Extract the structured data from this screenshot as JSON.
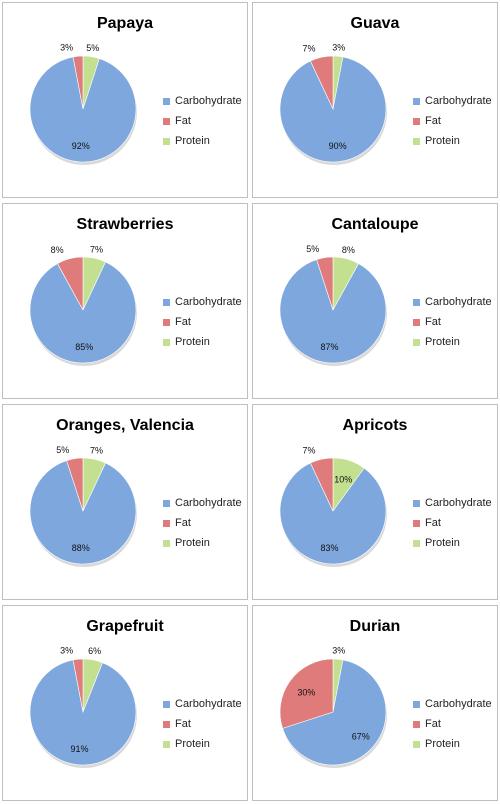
{
  "chart_data": [
    {
      "type": "pie",
      "title": "Papaya",
      "labels": [
        "Carbohydrate",
        "Fat",
        "Protein"
      ],
      "values": [
        92,
        3,
        5
      ],
      "value_labels": [
        "92%",
        "3%",
        "5%"
      ],
      "colors": [
        "#7ea7dd",
        "#e07b7b",
        "#c2e08f"
      ],
      "legend_position": "right"
    },
    {
      "type": "pie",
      "title": "Guava",
      "labels": [
        "Carbohydrate",
        "Fat",
        "Protein"
      ],
      "values": [
        90,
        7,
        3
      ],
      "value_labels": [
        "90%",
        "7%",
        "3%"
      ],
      "colors": [
        "#7ea7dd",
        "#e07b7b",
        "#c2e08f"
      ],
      "legend_position": "right"
    },
    {
      "type": "pie",
      "title": "Strawberries",
      "labels": [
        "Carbohydrate",
        "Fat",
        "Protein"
      ],
      "values": [
        85,
        8,
        7
      ],
      "value_labels": [
        "85%",
        "8%",
        "7%"
      ],
      "colors": [
        "#7ea7dd",
        "#e07b7b",
        "#c2e08f"
      ],
      "legend_position": "right"
    },
    {
      "type": "pie",
      "title": "Cantaloupe",
      "labels": [
        "Carbohydrate",
        "Fat",
        "Protein"
      ],
      "values": [
        87,
        5,
        8
      ],
      "value_labels": [
        "87%",
        "5%",
        "8%"
      ],
      "colors": [
        "#7ea7dd",
        "#e07b7b",
        "#c2e08f"
      ],
      "legend_position": "right"
    },
    {
      "type": "pie",
      "title": "Oranges, Valencia",
      "labels": [
        "Carbohydrate",
        "Fat",
        "Protein"
      ],
      "values": [
        88,
        5,
        7
      ],
      "value_labels": [
        "88%",
        "5%",
        "7%"
      ],
      "colors": [
        "#7ea7dd",
        "#e07b7b",
        "#c2e08f"
      ],
      "legend_position": "right"
    },
    {
      "type": "pie",
      "title": "Apricots",
      "labels": [
        "Carbohydrate",
        "Fat",
        "Protein"
      ],
      "values": [
        83,
        7,
        10
      ],
      "value_labels": [
        "83%",
        "7%",
        "10%"
      ],
      "colors": [
        "#7ea7dd",
        "#e07b7b",
        "#c2e08f"
      ],
      "legend_position": "right"
    },
    {
      "type": "pie",
      "title": "Grapefruit",
      "labels": [
        "Carbohydrate",
        "Fat",
        "Protein"
      ],
      "values": [
        91,
        3,
        6
      ],
      "value_labels": [
        "91%",
        "3%",
        "6%"
      ],
      "colors": [
        "#7ea7dd",
        "#e07b7b",
        "#c2e08f"
      ],
      "legend_position": "right"
    },
    {
      "type": "pie",
      "title": "Durian",
      "labels": [
        "Carbohydrate",
        "Fat",
        "Protein"
      ],
      "values": [
        67,
        30,
        3
      ],
      "value_labels": [
        "67%",
        "30%",
        "3%"
      ],
      "colors": [
        "#7ea7dd",
        "#e07b7b",
        "#c2e08f"
      ],
      "legend_position": "right"
    }
  ]
}
